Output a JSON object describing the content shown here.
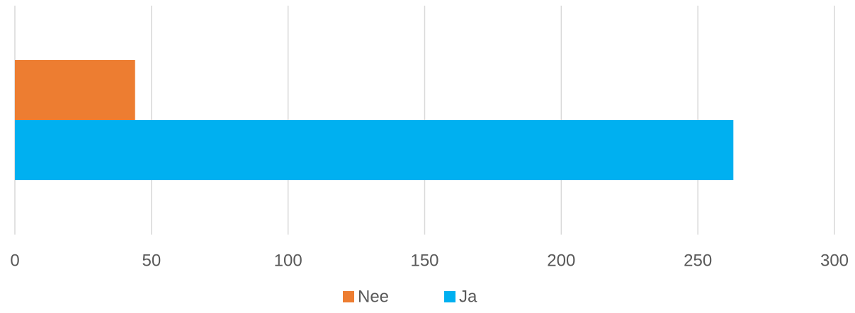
{
  "chart_data": {
    "type": "barh",
    "categories": [
      null
    ],
    "series": [
      {
        "name": "Nee",
        "color": "#ed7d31",
        "values": [
          44
        ]
      },
      {
        "name": "Ja",
        "color": "#00b0f0",
        "values": [
          263
        ]
      }
    ],
    "xlim": [
      0,
      300
    ],
    "xticks": [
      0,
      50,
      100,
      150,
      200,
      250,
      300
    ],
    "grid": true,
    "legend": "bottom"
  }
}
